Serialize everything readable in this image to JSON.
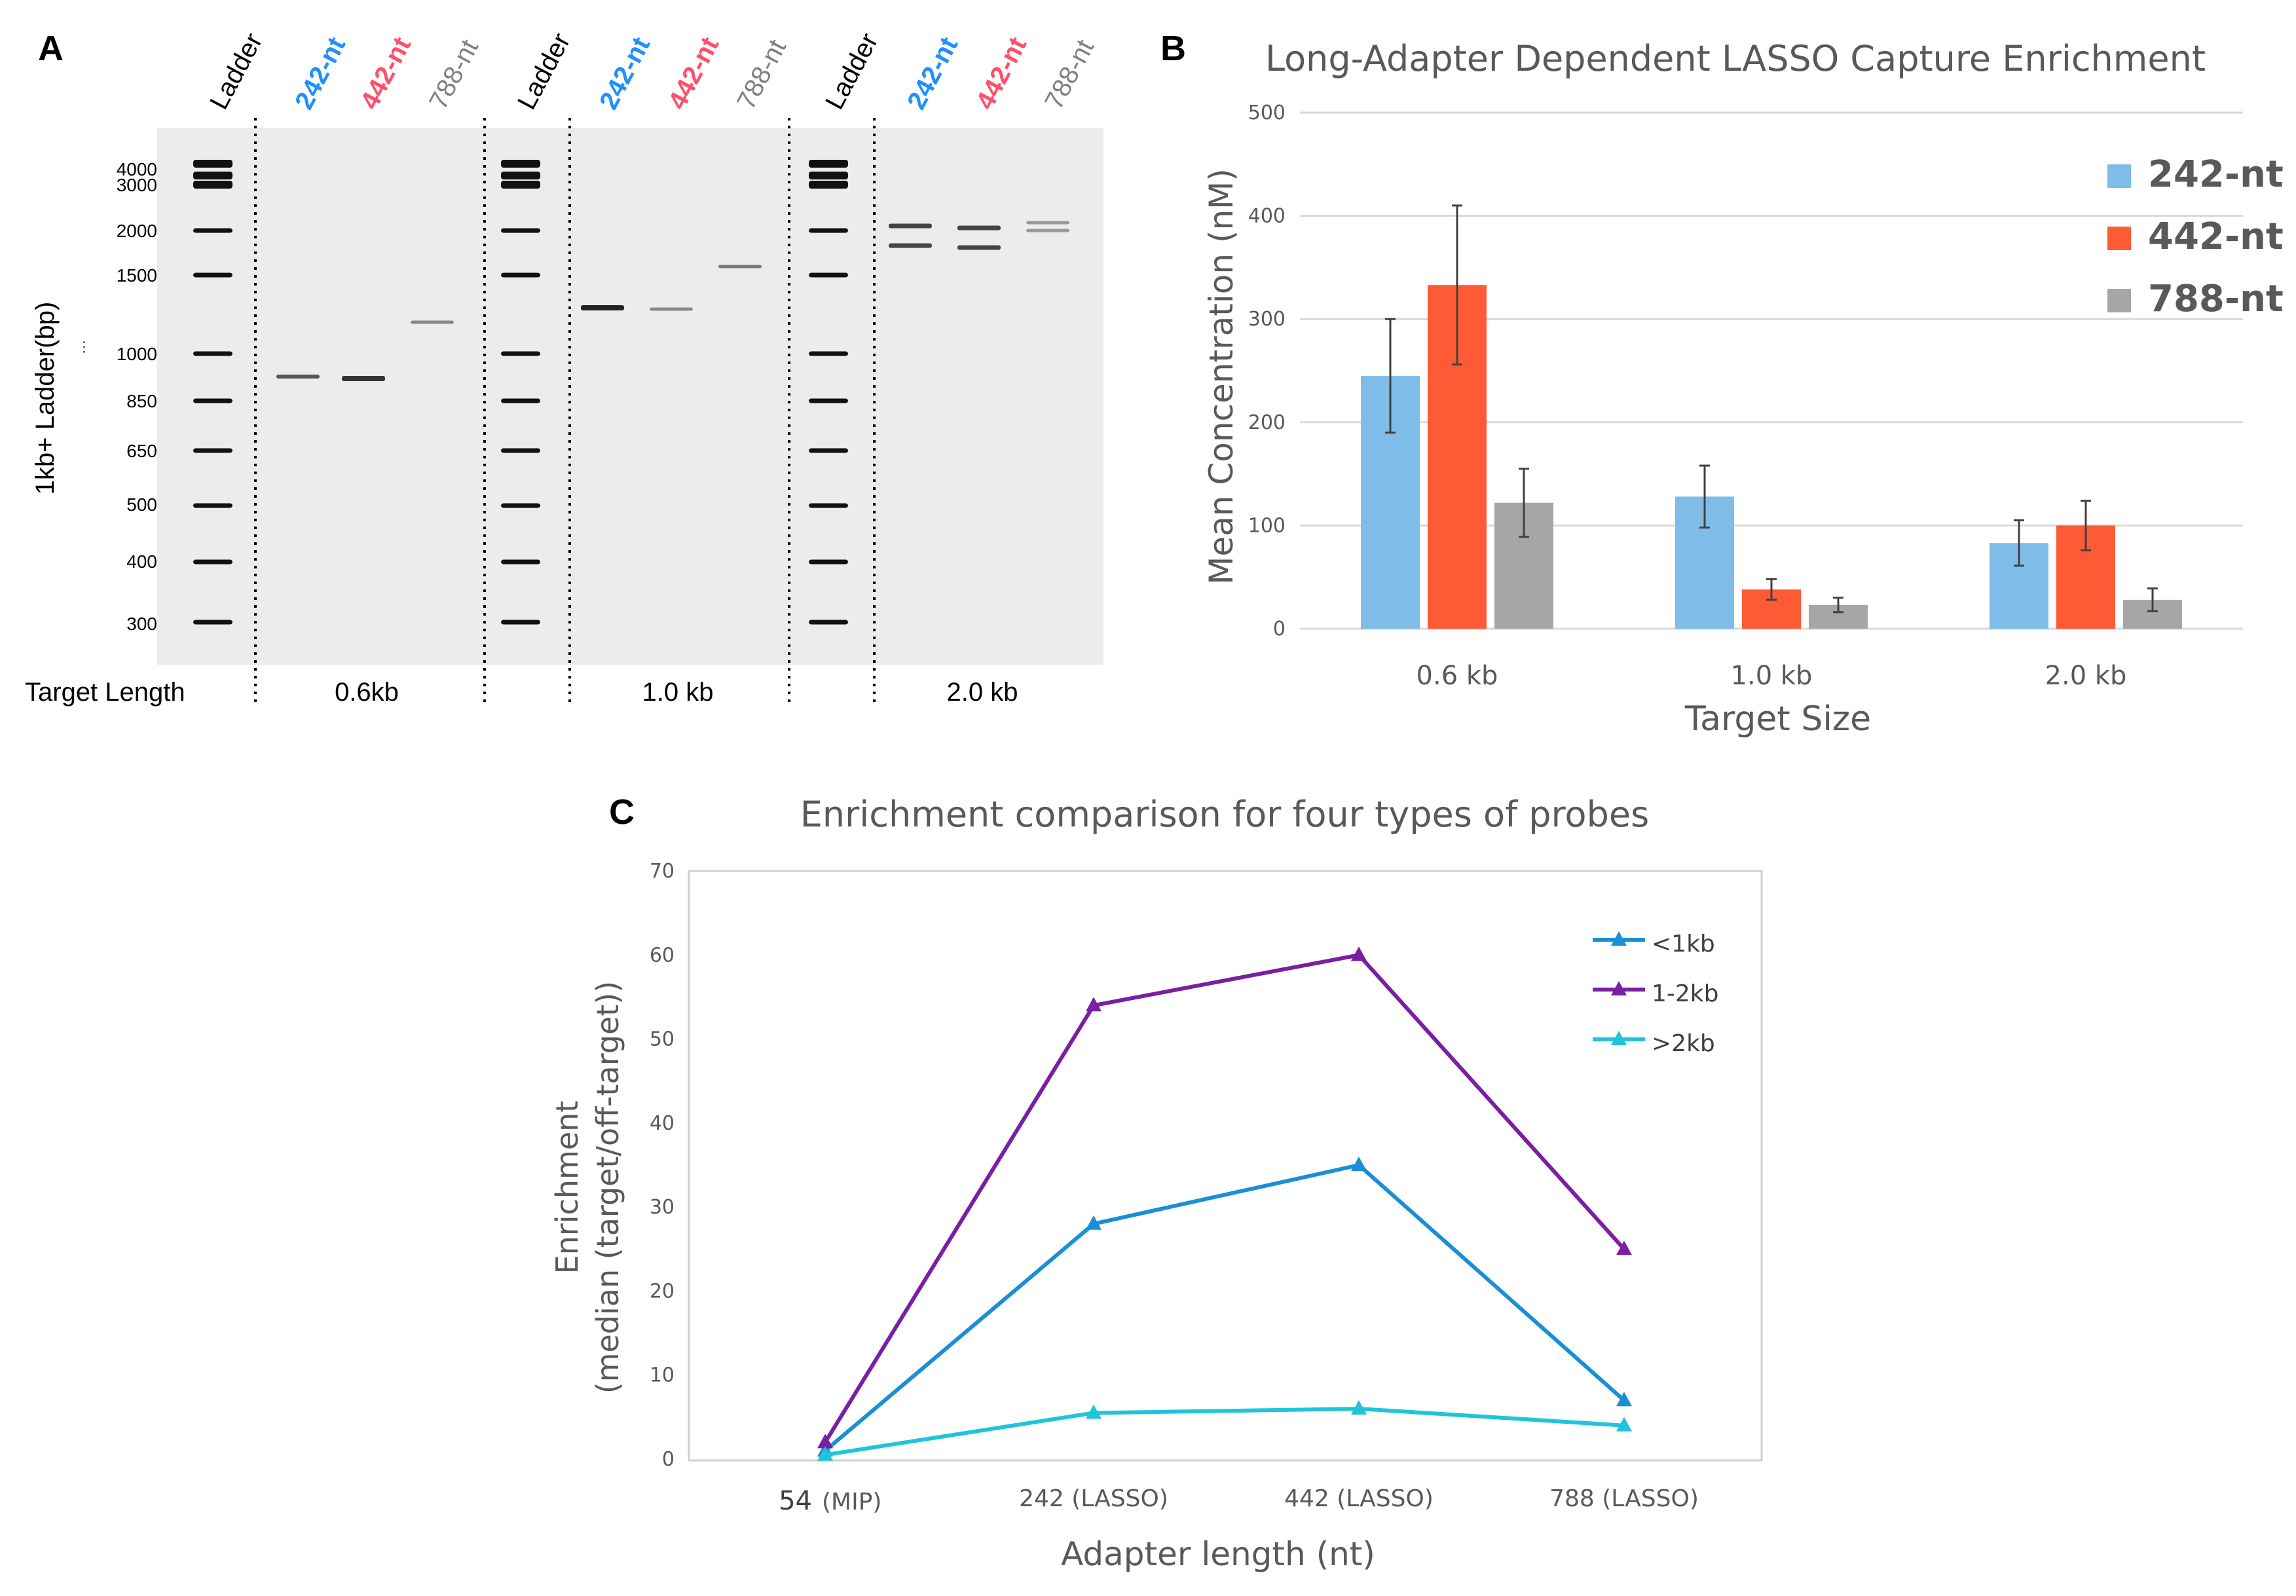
{
  "panel_labels": {
    "a": "A",
    "b": "B",
    "c": "C"
  },
  "colors": {
    "blue_bar": "#7FBCE7",
    "red_bar": "#FF5A36",
    "gray_bar": "#A6A6A6",
    "blue_text": "#1E90FF",
    "red_text": "#FF4F6B",
    "gray_text": "#808080",
    "line_lt1kb": "#1A8FD5",
    "line_1_2kb": "#7A1FA2",
    "line_gt2kb": "#1FC4DB"
  },
  "chart_data": [
    {
      "type": "gel",
      "panel": "A",
      "ylabel": "1kb+ Ladder(bp)",
      "ylabel_marker": "...",
      "ladder_ticks": [
        "4000",
        "3000",
        "2000",
        "1500",
        "1000",
        "850",
        "650",
        "500",
        "400",
        "300"
      ],
      "lane_labels": [
        "Ladder",
        "242-nt",
        "442-nt",
        "788-nt",
        "Ladder",
        "242-nt",
        "442-nt",
        "788-nt",
        "Ladder",
        "242-nt",
        "442-nt",
        "788-nt"
      ],
      "footer_label": "Target Length",
      "groups": [
        "0.6kb",
        "1.0 kb",
        "2.0 kb"
      ]
    },
    {
      "type": "bar",
      "panel": "B",
      "title": "Long-Adapter Dependent LASSO Capture Enrichment",
      "xlabel": "Target Size",
      "ylabel": "Mean Concentration (nM)",
      "categories": [
        "0.6 kb",
        "1.0 kb",
        "2.0 kb"
      ],
      "ylim": [
        0,
        500
      ],
      "yticks": [
        0,
        100,
        200,
        300,
        400,
        500
      ],
      "series": [
        {
          "name": "242-nt",
          "values": [
            245,
            128,
            83
          ],
          "errors": [
            55,
            30,
            22
          ]
        },
        {
          "name": "442-nt",
          "values": [
            333,
            38,
            100
          ],
          "errors": [
            77,
            10,
            24
          ]
        },
        {
          "name": "788-nt",
          "values": [
            122,
            23,
            28
          ],
          "errors": [
            33,
            7,
            11
          ]
        }
      ]
    },
    {
      "type": "line",
      "panel": "C",
      "title": "Enrichment comparison for four types of probes",
      "xlabel": "Adapter length (nt)",
      "ylabel_lines": [
        "Enrichment",
        "(median (target/off-target))"
      ],
      "categories": [
        {
          "main": "54",
          "sub": "(MIP)"
        },
        {
          "main": "242 (LASSO)",
          "sub": ""
        },
        {
          "main": "442 (LASSO)",
          "sub": ""
        },
        {
          "main": "788 (LASSO)",
          "sub": ""
        }
      ],
      "ylim": [
        0,
        70
      ],
      "yticks": [
        0,
        10,
        20,
        30,
        40,
        50,
        60,
        70
      ],
      "series": [
        {
          "name": "<1kb",
          "values": [
            1,
            28,
            35,
            7
          ]
        },
        {
          "name": "1-2kb",
          "values": [
            2,
            54,
            60,
            25
          ]
        },
        {
          "name": ">2kb",
          "values": [
            0.5,
            5.5,
            6,
            4
          ]
        }
      ]
    }
  ]
}
